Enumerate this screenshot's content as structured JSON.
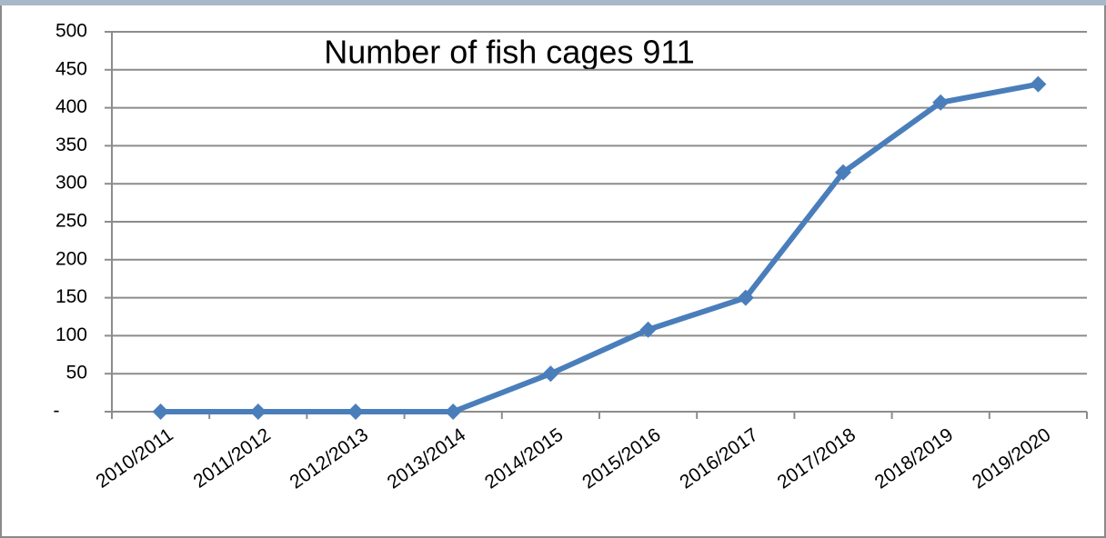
{
  "chart_data": {
    "type": "line",
    "title": "Number of fish cages 911",
    "categories": [
      "2010/2011",
      "2011/2012",
      "2012/2013",
      "2013/2014",
      "2014/2015",
      "2015/2016",
      "2016/2017",
      "2017/2018",
      "2018/2019",
      "2019/2020"
    ],
    "values": [
      0,
      0,
      0,
      0,
      50,
      108,
      150,
      315,
      407,
      431
    ],
    "color": "#4a7ebb",
    "ylim": [
      0,
      500
    ],
    "yticks": [
      {
        "value": 0,
        "label": "-"
      },
      50,
      100,
      150,
      200,
      250,
      300,
      350,
      400,
      450,
      500
    ],
    "grid": true
  }
}
